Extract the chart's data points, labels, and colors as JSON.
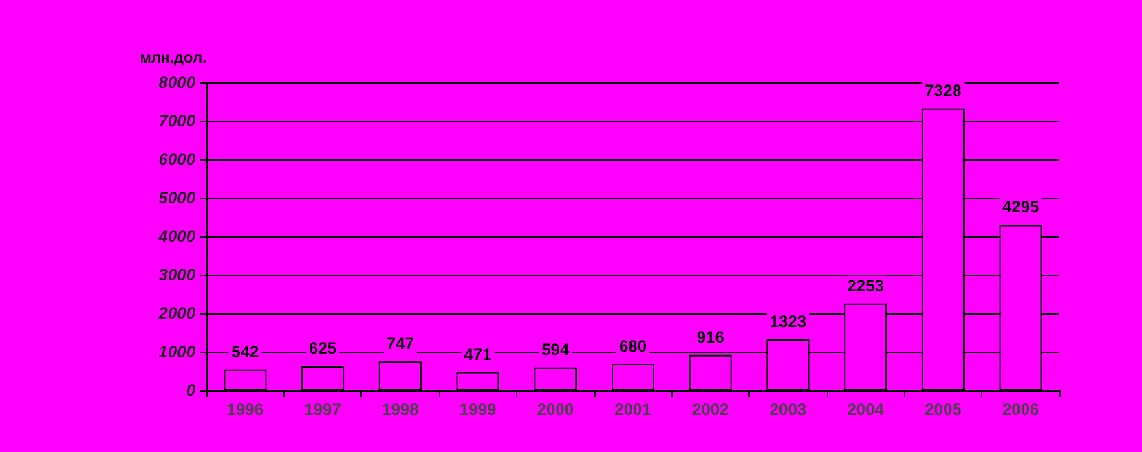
{
  "chart_data": {
    "type": "bar",
    "ylabel": "млн.дол.",
    "categories": [
      "1996",
      "1997",
      "1998",
      "1999",
      "2000",
      "2001",
      "2002",
      "2003",
      "2004",
      "2005",
      "2006"
    ],
    "values": [
      542,
      625,
      747,
      471,
      594,
      680,
      916,
      1323,
      2253,
      7328,
      4295
    ],
    "color": "#ff00ff",
    "ylim": [
      0,
      8000
    ],
    "yticks": [
      0,
      1000,
      2000,
      3000,
      4000,
      5000,
      6000,
      7000,
      8000
    ],
    "grid": "y",
    "data_labels": true
  }
}
